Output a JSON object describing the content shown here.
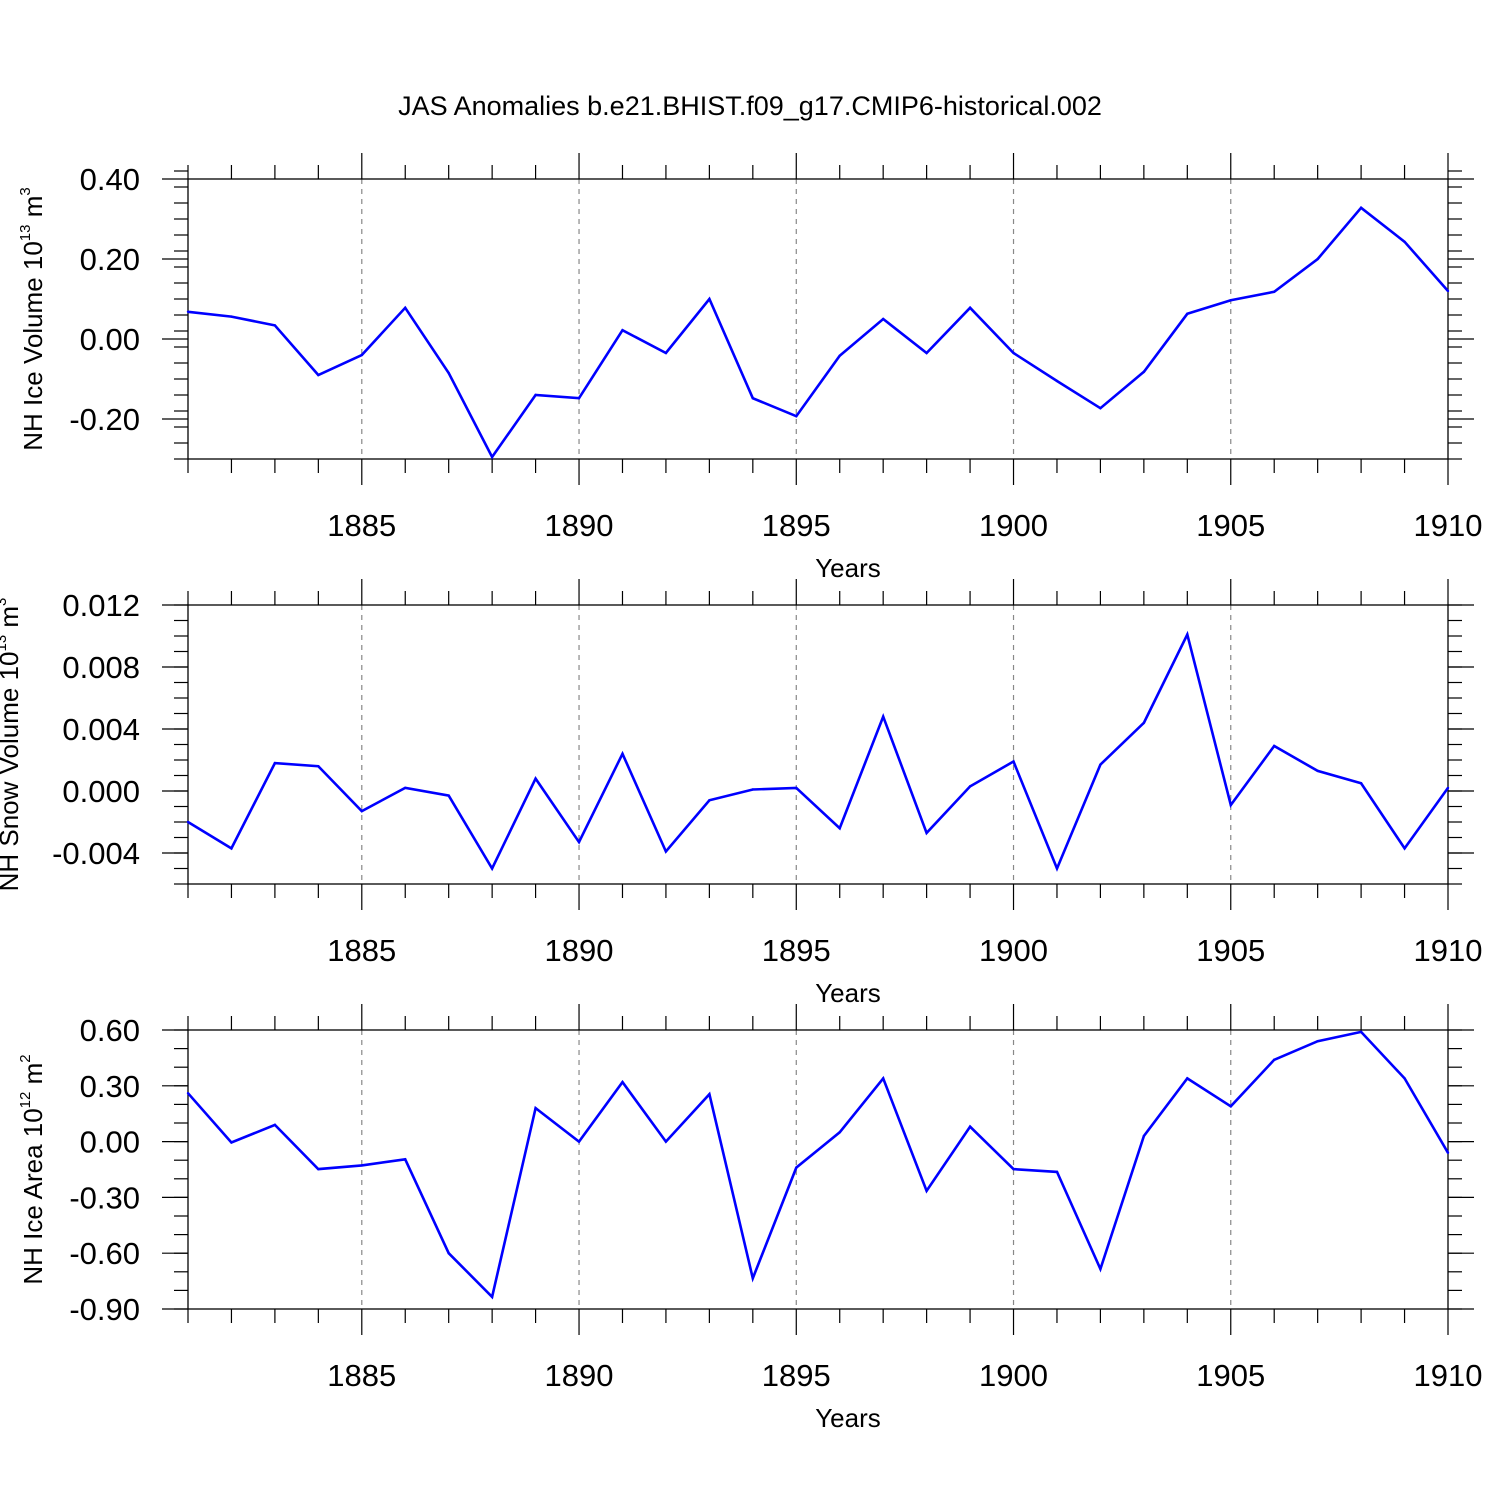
{
  "title": "JAS Anomalies b.e21.BHIST.f09_g17.CMIP6-historical.002",
  "colors": {
    "line": "#0000ff",
    "axis": "#000000",
    "grid": "#888888"
  },
  "chart_data": [
    {
      "type": "line",
      "xlabel": "Years",
      "ylabel_text": "NH Ice Volume 10",
      "ylabel_exp": "13",
      "ylabel_unit": " m",
      "ylabel_unit_exp": "3",
      "xlim": [
        1881,
        1910
      ],
      "ylim": [
        -0.3,
        0.4
      ],
      "yticks": [
        -0.2,
        0.0,
        0.2,
        0.4
      ],
      "ytick_labels": [
        "-0.20",
        "0.00",
        "0.20",
        "0.40"
      ],
      "yminor_step": 0.04,
      "xticks": [
        1885,
        1890,
        1895,
        1900,
        1905,
        1910
      ],
      "xtick_labels": [
        "1885",
        "1890",
        "1895",
        "1900",
        "1905",
        "1910"
      ],
      "grid": "vertical dashed at major x ticks",
      "x": [
        1881,
        1882,
        1883,
        1884,
        1885,
        1886,
        1887,
        1888,
        1889,
        1890,
        1891,
        1892,
        1893,
        1894,
        1895,
        1896,
        1897,
        1898,
        1899,
        1900,
        1901,
        1902,
        1903,
        1904,
        1905,
        1906,
        1907,
        1908,
        1909,
        1910
      ],
      "series": [
        {
          "values": [
            0.068,
            0.056,
            0.034,
            -0.09,
            -0.04,
            0.078,
            -0.085,
            -0.295,
            -0.14,
            -0.148,
            0.022,
            -0.035,
            0.1,
            -0.148,
            -0.193,
            -0.042,
            0.05,
            -0.035,
            0.078,
            -0.035,
            -0.105,
            -0.173,
            -0.082,
            0.063,
            0.097,
            0.118,
            0.2,
            0.328,
            0.243,
            0.12
          ]
        }
      ]
    },
    {
      "type": "line",
      "xlabel": "Years",
      "ylabel_text": "NH Snow Volume 10",
      "ylabel_exp": "13",
      "ylabel_unit": " m",
      "ylabel_unit_exp": "3",
      "xlim": [
        1881,
        1910
      ],
      "ylim": [
        -0.006,
        0.012
      ],
      "yticks": [
        -0.004,
        0.0,
        0.004,
        0.008,
        0.012
      ],
      "ytick_labels": [
        "-0.004",
        "0.000",
        "0.004",
        "0.008",
        "0.012"
      ],
      "yminor_step": 0.001,
      "xticks": [
        1885,
        1890,
        1895,
        1900,
        1905,
        1910
      ],
      "xtick_labels": [
        "1885",
        "1890",
        "1895",
        "1900",
        "1905",
        "1910"
      ],
      "grid": "vertical dashed at major x ticks",
      "x": [
        1881,
        1882,
        1883,
        1884,
        1885,
        1886,
        1887,
        1888,
        1889,
        1890,
        1891,
        1892,
        1893,
        1894,
        1895,
        1896,
        1897,
        1898,
        1899,
        1900,
        1901,
        1902,
        1903,
        1904,
        1905,
        1906,
        1907,
        1908,
        1909,
        1910
      ],
      "series": [
        {
          "values": [
            -0.002,
            -0.0037,
            0.0018,
            0.0016,
            -0.0013,
            0.0002,
            -0.0003,
            -0.005,
            0.0008,
            -0.0033,
            0.0024,
            -0.0039,
            -0.0006,
            0.0001,
            0.0002,
            -0.0024,
            0.0048,
            -0.0027,
            0.0003,
            0.0019,
            -0.005,
            0.0017,
            0.0044,
            0.0101,
            -0.0009,
            0.0029,
            0.0013,
            0.0005,
            -0.0037,
            0.0002
          ]
        }
      ]
    },
    {
      "type": "line",
      "xlabel": "Years",
      "ylabel_text": "NH Ice Area 10",
      "ylabel_exp": "12",
      "ylabel_unit": " m",
      "ylabel_unit_exp": "2",
      "xlim": [
        1881,
        1910
      ],
      "ylim": [
        -0.9,
        0.6
      ],
      "yticks": [
        -0.9,
        -0.6,
        -0.3,
        0.0,
        0.3,
        0.6
      ],
      "ytick_labels": [
        "-0.90",
        "-0.60",
        "-0.30",
        "0.00",
        "0.30",
        "0.60"
      ],
      "yminor_step": 0.1,
      "xticks": [
        1885,
        1890,
        1895,
        1900,
        1905,
        1910
      ],
      "xtick_labels": [
        "1885",
        "1890",
        "1895",
        "1900",
        "1905",
        "1910"
      ],
      "grid": "vertical dashed at major x ticks",
      "x": [
        1881,
        1882,
        1883,
        1884,
        1885,
        1886,
        1887,
        1888,
        1889,
        1890,
        1891,
        1892,
        1893,
        1894,
        1895,
        1896,
        1897,
        1898,
        1899,
        1900,
        1901,
        1902,
        1903,
        1904,
        1905,
        1906,
        1907,
        1908,
        1909,
        1910
      ],
      "series": [
        {
          "values": [
            0.26,
            -0.005,
            0.09,
            -0.148,
            -0.128,
            -0.095,
            -0.6,
            -0.835,
            0.18,
            0.0,
            0.32,
            0.0,
            0.255,
            -0.735,
            -0.14,
            0.05,
            0.34,
            -0.265,
            0.08,
            -0.148,
            -0.163,
            -0.685,
            0.03,
            0.34,
            0.19,
            0.44,
            0.54,
            0.59,
            0.34,
            -0.06
          ]
        }
      ]
    }
  ]
}
